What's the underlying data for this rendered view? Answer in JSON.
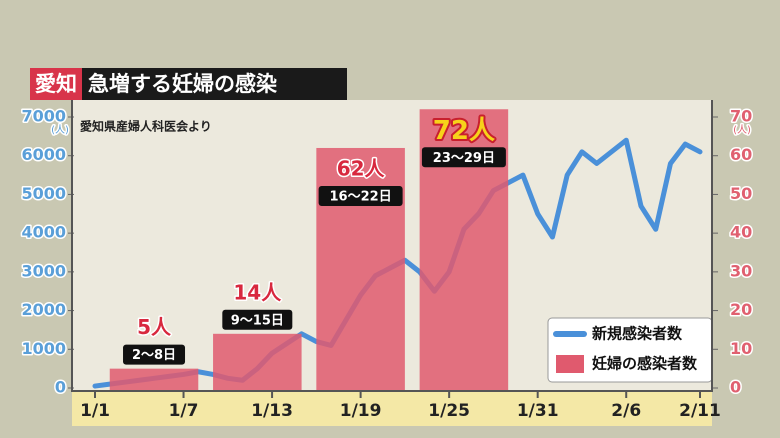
{
  "chart_data": {
    "type": "bar_line",
    "title_tag": "愛知",
    "title": "急増する妊婦の感染",
    "source": "愛知県産婦人科医会より",
    "y_unit": "(人)",
    "y2_unit": "(人)",
    "xlim": [
      0,
      41
    ],
    "xticks": [
      {
        "value": 0,
        "label": "1/1"
      },
      {
        "value": 6,
        "label": "1/7"
      },
      {
        "value": 12,
        "label": "1/13"
      },
      {
        "value": 18,
        "label": "1/19"
      },
      {
        "value": 24,
        "label": "1/25"
      },
      {
        "value": 30,
        "label": "1/31"
      },
      {
        "value": 36,
        "label": "2/6"
      },
      {
        "value": 41,
        "label": "2/11"
      }
    ],
    "ylim": [
      0,
      7000
    ],
    "yticks": [
      0,
      1000,
      2000,
      3000,
      4000,
      5000,
      6000,
      7000
    ],
    "y2lim": [
      0,
      70
    ],
    "y2ticks": [
      0,
      10,
      20,
      30,
      40,
      50,
      60,
      70
    ],
    "series": [
      {
        "name": "新規感染者数",
        "color": "#4a90d9",
        "type": "line",
        "x": [
          0,
          1,
          2,
          3,
          4,
          5,
          6,
          7,
          8,
          9,
          10,
          11,
          12,
          13,
          14,
          15,
          16,
          17,
          18,
          19,
          20,
          21,
          22,
          23,
          24,
          25,
          26,
          27,
          28,
          29,
          30,
          31,
          32,
          33,
          34,
          35,
          36,
          37,
          38,
          39,
          40,
          41
        ],
        "values": [
          50,
          100,
          150,
          200,
          250,
          300,
          350,
          420,
          350,
          250,
          200,
          500,
          900,
          1150,
          1400,
          1200,
          1100,
          1750,
          2400,
          2900,
          3100,
          3300,
          3000,
          2500,
          3000,
          4100,
          4500,
          5100,
          5300,
          5500,
          4500,
          3900,
          5500,
          6100,
          5800,
          6100,
          6400,
          4700,
          4100,
          5800,
          6300,
          6100
        ]
      },
      {
        "name": "妊婦の感染者数",
        "color": "#e05a6e",
        "type": "bar",
        "axis": "y2",
        "x": [
          4,
          11,
          18,
          25
        ],
        "values": [
          5,
          14,
          62,
          72
        ],
        "value_labels": [
          "5人",
          "14人",
          "62人",
          "72人"
        ],
        "periods": [
          "2〜8日",
          "9〜15日",
          "16〜22日",
          "23〜29日"
        ]
      }
    ]
  }
}
